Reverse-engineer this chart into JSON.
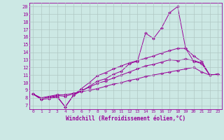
{
  "xlabel": "Windchill (Refroidissement éolien,°C)",
  "bg_color": "#cce8e4",
  "grid_color": "#b0c8c4",
  "line_color": "#990099",
  "xlim": [
    -0.5,
    23.5
  ],
  "ylim": [
    6.5,
    20.5
  ],
  "xticks": [
    0,
    1,
    2,
    3,
    4,
    5,
    6,
    7,
    8,
    9,
    10,
    11,
    12,
    13,
    14,
    15,
    16,
    17,
    18,
    19,
    20,
    21,
    22,
    23
  ],
  "yticks": [
    7,
    8,
    9,
    10,
    11,
    12,
    13,
    14,
    15,
    16,
    17,
    18,
    19,
    20
  ],
  "series1_x": [
    0,
    1,
    2,
    3,
    4,
    5,
    6,
    7,
    8,
    9,
    10,
    11,
    12,
    13,
    14,
    15,
    16,
    17,
    18,
    19,
    20,
    21,
    22,
    23
  ],
  "series1_y": [
    8.5,
    7.8,
    8.0,
    8.2,
    6.8,
    8.3,
    8.9,
    9.5,
    10.2,
    10.5,
    11.1,
    11.5,
    12.5,
    12.8,
    16.5,
    15.8,
    17.2,
    19.2,
    20.0,
    14.5,
    12.8,
    12.5,
    11.0,
    11.1
  ],
  "series2_x": [
    0,
    1,
    2,
    3,
    4,
    5,
    6,
    7,
    8,
    9,
    10,
    11,
    12,
    13,
    14,
    15,
    16,
    17,
    18,
    19,
    20,
    21,
    22,
    23
  ],
  "series2_y": [
    8.5,
    8.0,
    8.2,
    8.4,
    8.4,
    8.6,
    8.8,
    9.0,
    9.2,
    9.5,
    9.8,
    10.0,
    10.3,
    10.5,
    10.8,
    11.0,
    11.2,
    11.4,
    11.6,
    11.8,
    12.0,
    11.4,
    11.0,
    11.1
  ],
  "series3_x": [
    0,
    1,
    2,
    3,
    4,
    5,
    6,
    7,
    8,
    9,
    10,
    11,
    12,
    13,
    14,
    15,
    16,
    17,
    18,
    19,
    20,
    21,
    22,
    23
  ],
  "series3_y": [
    8.5,
    7.9,
    8.1,
    8.3,
    8.2,
    8.5,
    8.9,
    9.4,
    9.9,
    10.2,
    10.6,
    11.0,
    11.4,
    11.8,
    12.2,
    12.4,
    12.7,
    13.0,
    12.9,
    13.1,
    12.9,
    12.6,
    11.0,
    11.1
  ],
  "series4_x": [
    0,
    1,
    2,
    3,
    4,
    5,
    6,
    7,
    8,
    9,
    10,
    11,
    12,
    13,
    14,
    15,
    16,
    17,
    18,
    19,
    20,
    21,
    22,
    23
  ],
  "series4_y": [
    8.5,
    7.8,
    7.9,
    8.1,
    6.8,
    8.3,
    9.2,
    10.0,
    10.9,
    11.3,
    11.8,
    12.2,
    12.6,
    12.9,
    13.2,
    13.5,
    13.9,
    14.2,
    14.5,
    14.5,
    13.5,
    12.8,
    11.0,
    11.1
  ]
}
